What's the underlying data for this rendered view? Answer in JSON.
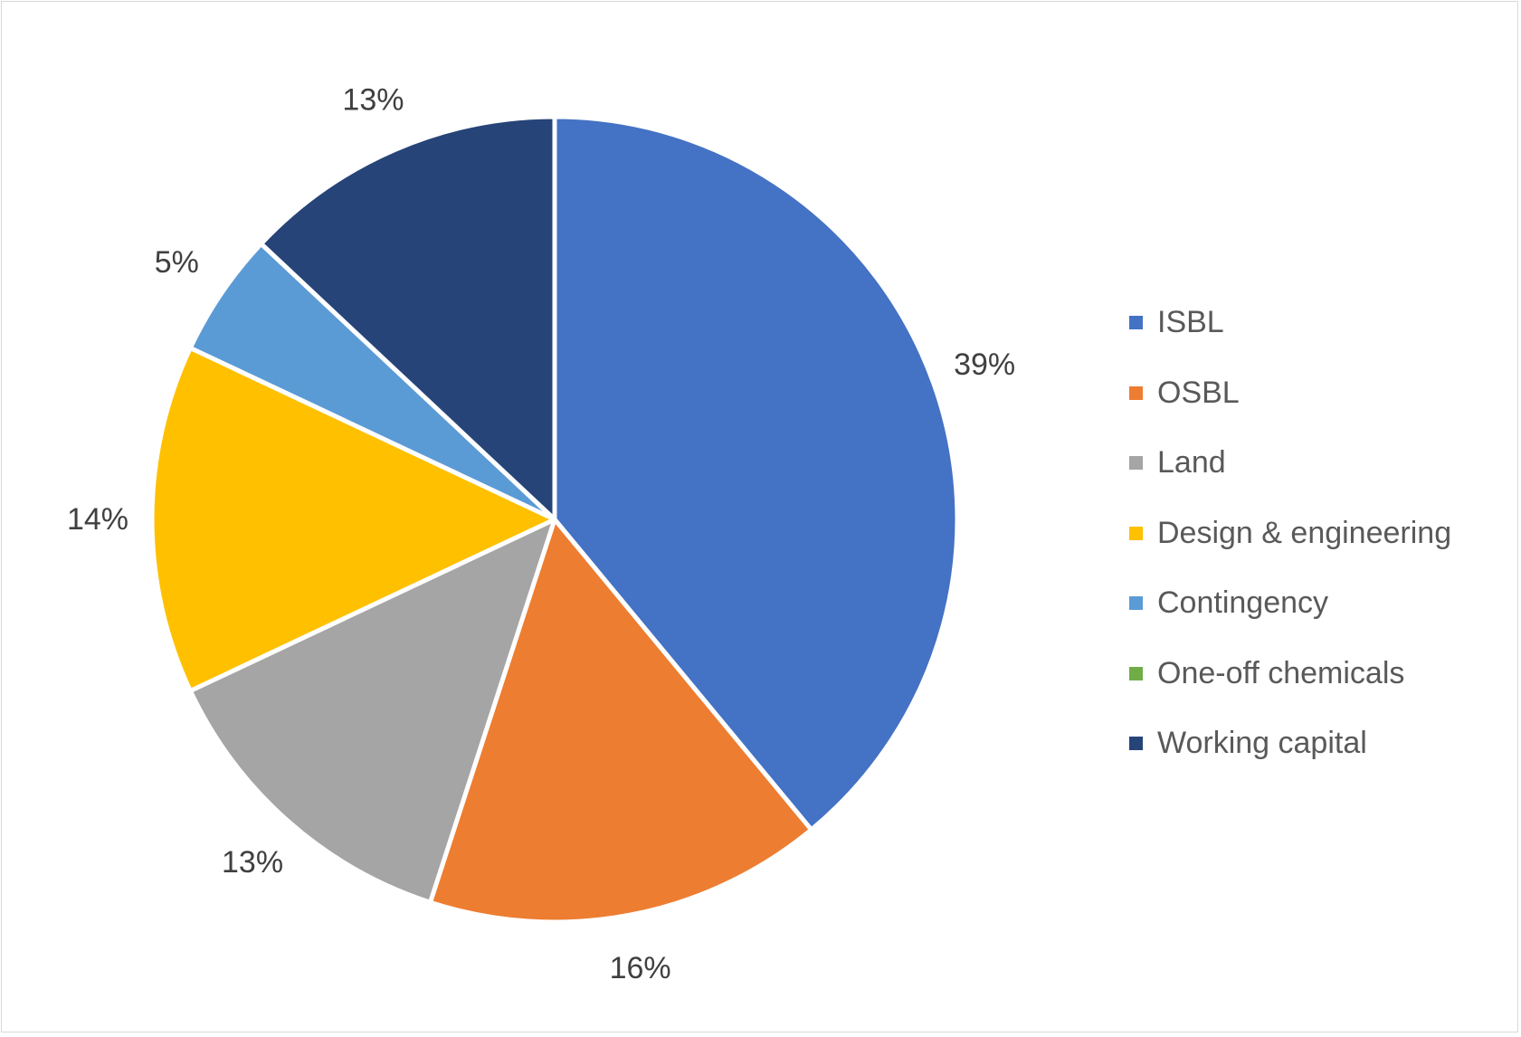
{
  "chart_data": {
    "type": "pie",
    "categories": [
      "ISBL",
      "OSBL",
      "Land",
      "Design & engineering",
      "Contingency",
      "One-off chemicals",
      "Working capital"
    ],
    "values": [
      39,
      16,
      13,
      14,
      5,
      0,
      13
    ],
    "data_labels": [
      "39%",
      "16%",
      "13%",
      "14%",
      "5%",
      "",
      "13%"
    ],
    "colors": [
      "#4472C4",
      "#ED7D31",
      "#A5A5A5",
      "#FFC000",
      "#5B9BD5",
      "#70AD47",
      "#264478"
    ],
    "legend_position": "right",
    "start_angle": "12 o'clock",
    "direction": "clockwise"
  }
}
